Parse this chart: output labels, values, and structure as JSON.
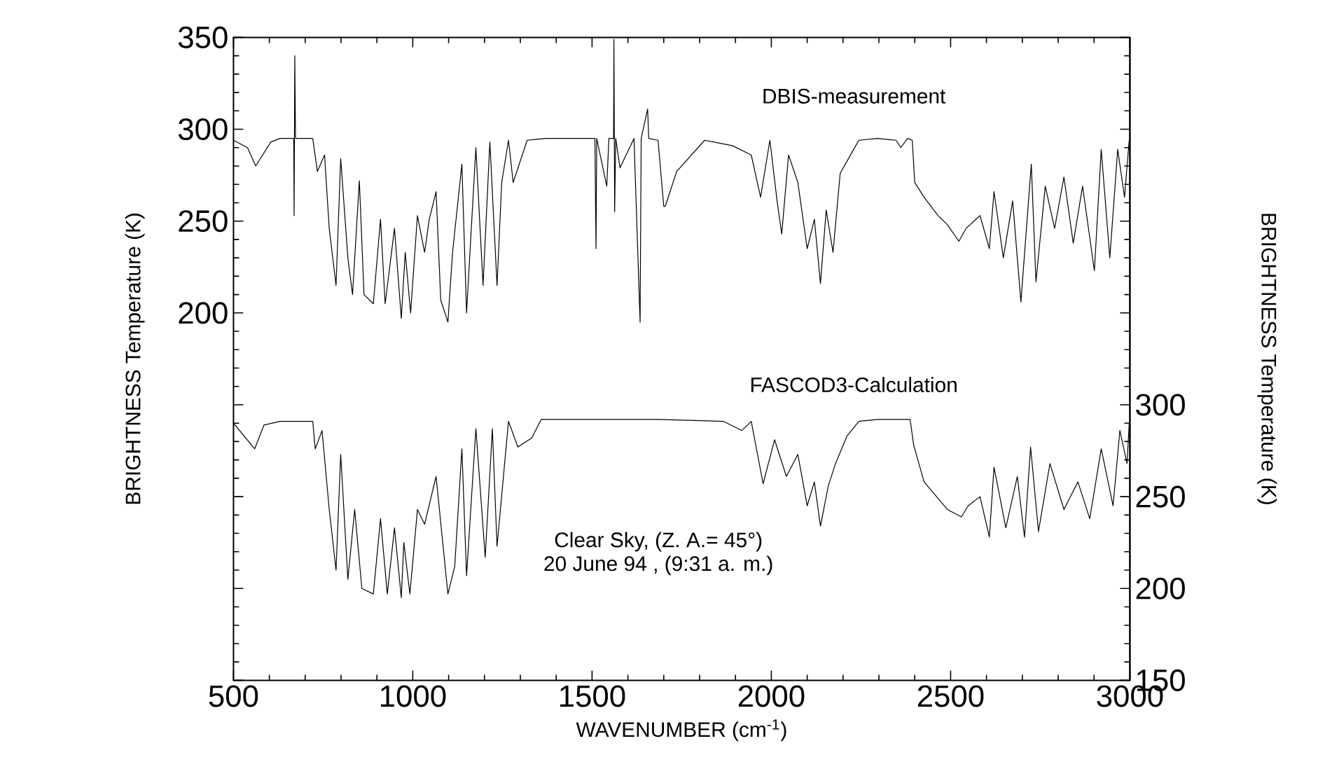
{
  "chart_data": {
    "type": "line",
    "xlabel": "WAVENUMBER (cm$^{-1}$)",
    "ylabel": "BRIGHTNESS Temperature (K)",
    "y2label": "BRIGHTNESS Temperature (K)",
    "marker": "none",
    "xlim": [
      500,
      3000
    ],
    "xticks": [
      500,
      1000,
      1500,
      2000,
      2500,
      3000
    ],
    "ylim": [
      0,
      350
    ],
    "yticks": [
      {
        "value": 0,
        "label": null
      },
      {
        "value": 50,
        "label": null
      },
      {
        "value": 100,
        "label": null
      },
      {
        "value": 150,
        "label": null
      },
      200,
      250,
      300,
      350
    ],
    "y2lim": [
      150,
      500
    ],
    "y2ticks": [
      150,
      200,
      250,
      300,
      {
        "value": 350,
        "label": null
      },
      {
        "value": 400,
        "label": null
      },
      {
        "value": 450,
        "label": null
      },
      {
        "value": 500,
        "label": null
      }
    ],
    "annotations": [
      "Clear Sky, (Z. A.= 45°)",
      "20 June 94 , (9:31 a. m.)"
    ],
    "series": [
      {
        "name": "DBIS-measurement",
        "color": "#000000",
        "x": [
          500,
          539,
          562,
          604,
          630,
          668,
          669,
          671,
          673,
          721,
          734,
          754,
          767,
          786,
          799,
          819,
          832,
          851,
          864,
          890,
          910,
          923,
          949,
          968,
          979,
          994,
          1013,
          1033,
          1046,
          1065,
          1078,
          1098,
          1111,
          1137,
          1150,
          1176,
          1196,
          1215,
          1235,
          1248,
          1267,
          1280,
          1319,
          1371,
          1456,
          1508,
          1511,
          1513,
          1541,
          1547,
          1560,
          1561,
          1563,
          1566,
          1578,
          1617,
          1634,
          1637,
          1655,
          1658,
          1684,
          1700,
          1704,
          1736,
          1814,
          1892,
          1944,
          1970,
          1996,
          2016,
          2029,
          2048,
          2074,
          2100,
          2120,
          2137,
          2153,
          2172,
          2192,
          2218,
          2244,
          2296,
          2348,
          2361,
          2380,
          2393,
          2400,
          2426,
          2465,
          2491,
          2523,
          2543,
          2582,
          2608,
          2621,
          2647,
          2673,
          2696,
          2725,
          2738,
          2764,
          2790,
          2816,
          2842,
          2868,
          2901,
          2920,
          2944,
          2966,
          2985,
          2998
        ],
        "values": [
          294,
          290,
          280,
          293,
          295,
          295,
          253,
          340,
          295,
          295,
          277,
          286,
          246,
          215,
          284,
          230,
          210,
          272,
          210,
          205,
          251,
          205,
          246,
          197,
          233,
          200,
          253,
          233,
          251,
          266,
          207,
          195,
          233,
          281,
          200,
          290,
          215,
          293,
          215,
          271,
          294,
          271,
          294,
          295,
          295,
          295,
          235,
          295,
          269,
          295,
          295,
          349,
          255,
          295,
          279,
          295,
          195,
          295,
          311,
          295,
          294,
          258,
          258,
          277,
          294,
          291,
          286,
          263,
          294,
          261,
          243,
          286,
          271,
          235,
          251,
          216,
          256,
          233,
          276,
          285,
          294,
          295,
          294,
          290,
          295,
          294,
          271,
          263,
          253,
          248,
          239,
          246,
          253,
          235,
          266,
          230,
          261,
          206,
          281,
          217,
          269,
          246,
          274,
          238,
          269,
          223,
          289,
          230,
          289,
          263,
          294
        ]
      },
      {
        "name": "FASCOD3-Calculation",
        "color": "#000000",
        "axis": "y2",
        "x": [
          500,
          559,
          585,
          630,
          721,
          728,
          747,
          767,
          786,
          799,
          819,
          838,
          858,
          890,
          910,
          929,
          949,
          968,
          975,
          992,
          1013,
          1033,
          1065,
          1098,
          1117,
          1137,
          1150,
          1176,
          1202,
          1222,
          1235,
          1267,
          1293,
          1332,
          1358,
          1684,
          1866,
          1918,
          1944,
          1977,
          2009,
          2042,
          2074,
          2100,
          2120,
          2137,
          2159,
          2179,
          2211,
          2244,
          2296,
          2387,
          2397,
          2426,
          2491,
          2530,
          2549,
          2582,
          2608,
          2621,
          2654,
          2686,
          2706,
          2723,
          2745,
          2777,
          2816,
          2855,
          2888,
          2920,
          2953,
          2972,
          2992,
          2998
        ],
        "values": [
          290,
          276,
          289,
          291,
          291,
          276,
          286,
          243,
          210,
          273,
          205,
          243,
          200,
          197,
          238,
          197,
          233,
          195,
          225,
          197,
          243,
          235,
          261,
          197,
          212,
          276,
          207,
          287,
          217,
          287,
          223,
          291,
          277,
          282,
          292,
          292,
          291,
          286,
          291,
          257,
          281,
          261,
          273,
          245,
          258,
          234,
          256,
          268,
          283,
          291,
          292,
          292,
          278,
          258,
          243,
          239,
          245,
          250,
          228,
          266,
          233,
          261,
          228,
          277,
          231,
          268,
          243,
          258,
          238,
          276,
          245,
          286,
          268,
          290
        ]
      }
    ]
  }
}
